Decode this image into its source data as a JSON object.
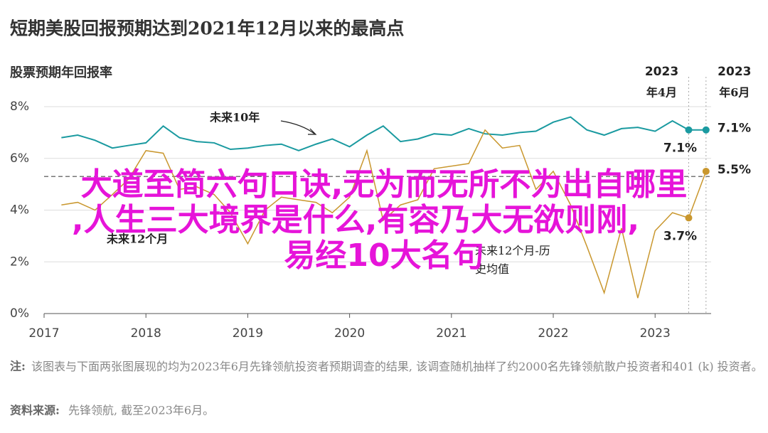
{
  "chart_data": {
    "type": "line",
    "title": "短期美股回报预期达到2021年12月以来的最高点",
    "subtitle": "股票预期年回报率",
    "x": [
      2017.17,
      2017.33,
      2017.5,
      2017.67,
      2017.83,
      2018,
      2018.17,
      2018.33,
      2018.5,
      2018.67,
      2018.83,
      2019,
      2019.17,
      2019.33,
      2019.5,
      2019.67,
      2019.83,
      2020,
      2020.17,
      2020.33,
      2020.5,
      2020.67,
      2020.83,
      2021,
      2021.17,
      2021.33,
      2021.5,
      2021.67,
      2021.83,
      2022,
      2022.17,
      2022.33,
      2022.5,
      2022.67,
      2022.83,
      2023,
      2023.17,
      2023.33,
      2023.5
    ],
    "series": [
      {
        "name": "未来10年",
        "color": "#1a9aa0",
        "values": [
          6.8,
          6.9,
          6.7,
          6.4,
          6.5,
          6.6,
          7.25,
          6.8,
          6.65,
          6.6,
          6.35,
          6.4,
          6.5,
          6.55,
          6.3,
          6.55,
          6.75,
          6.45,
          6.9,
          7.25,
          6.65,
          6.75,
          6.95,
          6.9,
          7.15,
          6.95,
          6.9,
          7.0,
          7.05,
          7.4,
          7.6,
          7.1,
          6.9,
          7.15,
          7.2,
          7.05,
          7.45,
          7.1,
          7.1
        ],
        "value_labels": [
          null,
          null,
          null,
          null,
          null,
          null,
          null,
          null,
          null,
          null,
          null,
          null,
          null,
          null,
          null,
          null,
          null,
          null,
          null,
          null,
          null,
          null,
          null,
          null,
          null,
          null,
          null,
          null,
          null,
          null,
          null,
          null,
          null,
          null,
          null,
          null,
          null,
          "7.1%",
          "7.1%"
        ]
      },
      {
        "name": "未来12个月",
        "color": "#c9972e",
        "values": [
          4.2,
          4.3,
          4.0,
          4.6,
          5.2,
          6.3,
          6.2,
          4.8,
          4.9,
          4.6,
          3.9,
          2.7,
          4.0,
          4.5,
          4.4,
          4.3,
          3.9,
          4.5,
          6.3,
          3.6,
          4.2,
          4.4,
          5.6,
          5.7,
          5.8,
          7.1,
          6.4,
          6.5,
          4.8,
          5.5,
          4.2,
          2.6,
          0.8,
          3.3,
          0.6,
          3.2,
          3.9,
          3.7,
          5.5
        ],
        "value_labels": [
          null,
          null,
          null,
          null,
          null,
          null,
          null,
          null,
          null,
          null,
          null,
          null,
          null,
          null,
          null,
          null,
          null,
          null,
          null,
          null,
          null,
          null,
          null,
          null,
          null,
          null,
          null,
          null,
          null,
          null,
          null,
          null,
          null,
          null,
          null,
          null,
          null,
          "3.7%",
          "5.5%"
        ]
      }
    ],
    "reference_line": {
      "label": "未来12个月-历史均值",
      "value": 5.3,
      "color": "#777777"
    },
    "highlights": [
      {
        "year": "2023",
        "month": "年4月"
      },
      {
        "year": "2023",
        "month": "年6月"
      }
    ],
    "xlim": [
      2017,
      2023.55
    ],
    "xticks": [
      2017,
      2018,
      2019,
      2020,
      2021,
      2022,
      2023
    ],
    "ylim": [
      0,
      8
    ],
    "yticks": [
      {
        "value": 0,
        "label": "0%"
      },
      {
        "value": 2,
        "label": "2%"
      },
      {
        "value": 4,
        "label": "4%"
      },
      {
        "value": 6,
        "label": "6%"
      },
      {
        "value": 8,
        "label": "8%"
      }
    ],
    "grid": true,
    "note_label": "注:",
    "note": "该图表与下面两张图展现的均为2023年6月先锋领航投资者预期调查的结果, 该调查随机抽样了约2000名先锋领航散户投资者和401 (k) 投资者。",
    "source_label": "资料来源:",
    "source": "先锋领航, 截至2023年6月。"
  },
  "overlay": {
    "lines": [
      "大道至简六句口诀,无为而无所不为出自哪里",
      ",人生三大境界是什么,有容乃大无欲则刚,",
      "易经10大名句"
    ]
  }
}
